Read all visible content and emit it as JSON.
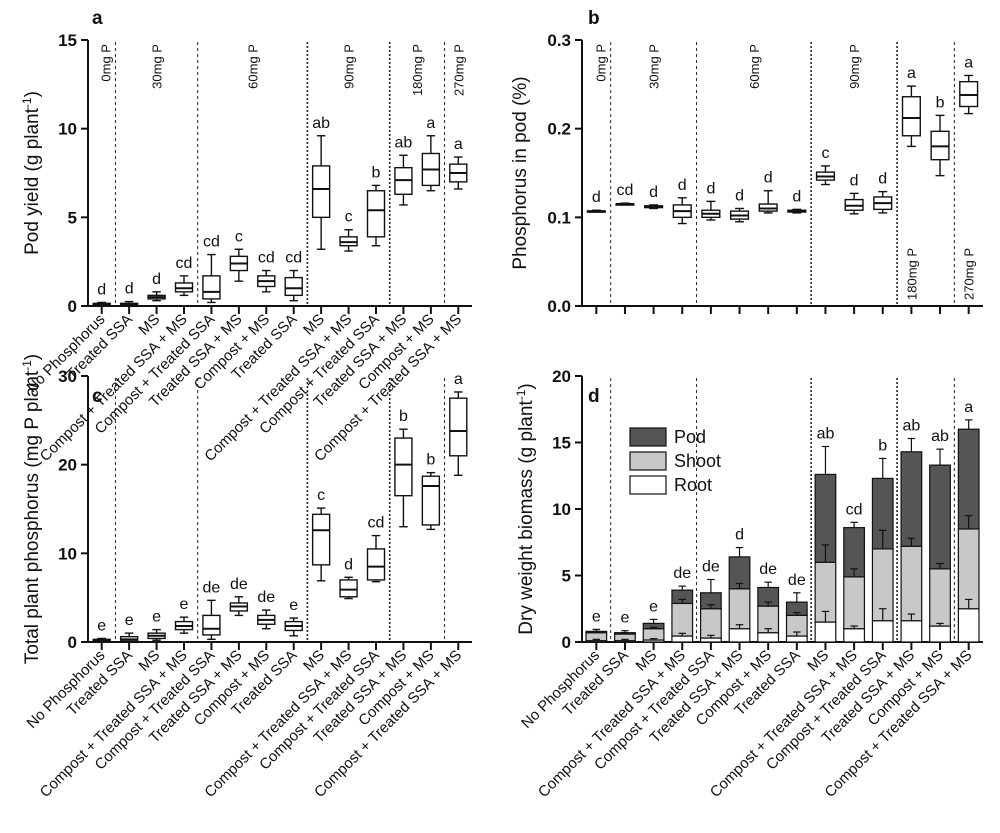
{
  "chart_data": [
    {
      "panel": "a",
      "type": "box",
      "title": "",
      "xlabel": "",
      "ylabel": "Pod yield (g plant-1)",
      "ylim": [
        0,
        15
      ],
      "yticks": [
        0,
        5,
        10,
        15
      ],
      "categories": [
        "No Phosphorus",
        "Treated SSA",
        "MS",
        "Compost + Treated SSA + MS",
        "Compost + Treated SSA",
        "Treated SSA + MS",
        "Compost + MS",
        "Treated SSA",
        "MS",
        "Compost + Treated SSA + MS",
        "Compost + Treated SSA",
        "Treated SSA + MS",
        "Compost + MS",
        "Compost + Treated SSA + MS"
      ],
      "groups": [
        "0mg P",
        "30mg P",
        "60mg P",
        "90mg P",
        "180mg P",
        "270mg P"
      ],
      "boxes": [
        {
          "min": 0.05,
          "q1": 0.08,
          "median": 0.1,
          "q3": 0.15,
          "max": 0.2,
          "letter": "d"
        },
        {
          "min": 0.0,
          "q1": 0.05,
          "median": 0.1,
          "q3": 0.15,
          "max": 0.25,
          "letter": "d"
        },
        {
          "min": 0.3,
          "q1": 0.4,
          "median": 0.5,
          "q3": 0.6,
          "max": 0.8,
          "letter": "d"
        },
        {
          "min": 0.6,
          "q1": 0.8,
          "median": 1.0,
          "q3": 1.3,
          "max": 1.7,
          "letter": "cd"
        },
        {
          "min": 0.2,
          "q1": 0.4,
          "median": 0.8,
          "q3": 1.7,
          "max": 2.9,
          "letter": "cd"
        },
        {
          "min": 1.4,
          "q1": 2.0,
          "median": 2.4,
          "q3": 2.8,
          "max": 3.2,
          "letter": "c"
        },
        {
          "min": 0.8,
          "q1": 1.1,
          "median": 1.4,
          "q3": 1.7,
          "max": 2.0,
          "letter": "cd"
        },
        {
          "min": 0.3,
          "q1": 0.6,
          "median": 1.0,
          "q3": 1.6,
          "max": 2.0,
          "letter": "cd"
        },
        {
          "min": 3.2,
          "q1": 5.0,
          "median": 6.6,
          "q3": 7.9,
          "max": 9.6,
          "letter": "ab"
        },
        {
          "min": 3.1,
          "q1": 3.4,
          "median": 3.6,
          "q3": 3.9,
          "max": 4.3,
          "letter": "c"
        },
        {
          "min": 3.4,
          "q1": 3.9,
          "median": 5.4,
          "q3": 6.5,
          "max": 6.8,
          "letter": "b"
        },
        {
          "min": 5.7,
          "q1": 6.3,
          "median": 7.1,
          "q3": 7.8,
          "max": 8.5,
          "letter": "ab"
        },
        {
          "min": 6.5,
          "q1": 6.8,
          "median": 7.7,
          "q3": 8.6,
          "max": 9.6,
          "letter": "a"
        },
        {
          "min": 6.6,
          "q1": 7.0,
          "median": 7.5,
          "q3": 8.0,
          "max": 8.4,
          "letter": "a"
        }
      ]
    },
    {
      "panel": "b",
      "type": "box",
      "title": "",
      "xlabel": "",
      "ylabel": "Phosphorus in pod (%)",
      "ylim": [
        0,
        0.3
      ],
      "yticks": [
        0.0,
        0.1,
        0.2,
        0.3
      ],
      "categories": [],
      "groups": [
        "0mg P",
        "30mg P",
        "60mg P",
        "90mg P",
        "180mg P",
        "270mg P"
      ],
      "group_labels_low": [
        "180mg P",
        "270mg P"
      ],
      "boxes": [
        {
          "min": 0.106,
          "q1": 0.106,
          "median": 0.107,
          "q3": 0.107,
          "max": 0.108,
          "letter": "d"
        },
        {
          "min": 0.114,
          "q1": 0.114,
          "median": 0.115,
          "q3": 0.115,
          "max": 0.116,
          "letter": "cd"
        },
        {
          "min": 0.11,
          "q1": 0.111,
          "median": 0.112,
          "q3": 0.113,
          "max": 0.114,
          "letter": "d"
        },
        {
          "min": 0.093,
          "q1": 0.1,
          "median": 0.107,
          "q3": 0.114,
          "max": 0.122,
          "letter": "d"
        },
        {
          "min": 0.097,
          "q1": 0.1,
          "median": 0.104,
          "q3": 0.108,
          "max": 0.118,
          "letter": "d"
        },
        {
          "min": 0.095,
          "q1": 0.098,
          "median": 0.102,
          "q3": 0.107,
          "max": 0.11,
          "letter": "d"
        },
        {
          "min": 0.105,
          "q1": 0.107,
          "median": 0.11,
          "q3": 0.115,
          "max": 0.13,
          "letter": "d"
        },
        {
          "min": 0.105,
          "q1": 0.106,
          "median": 0.107,
          "q3": 0.108,
          "max": 0.109,
          "letter": "d"
        },
        {
          "min": 0.137,
          "q1": 0.142,
          "median": 0.146,
          "q3": 0.151,
          "max": 0.158,
          "letter": "c"
        },
        {
          "min": 0.104,
          "q1": 0.108,
          "median": 0.113,
          "q3": 0.12,
          "max": 0.127,
          "letter": "d"
        },
        {
          "min": 0.105,
          "q1": 0.109,
          "median": 0.116,
          "q3": 0.123,
          "max": 0.129,
          "letter": "d"
        },
        {
          "min": 0.18,
          "q1": 0.192,
          "median": 0.212,
          "q3": 0.236,
          "max": 0.248,
          "letter": "a"
        },
        {
          "min": 0.147,
          "q1": 0.165,
          "median": 0.18,
          "q3": 0.197,
          "max": 0.215,
          "letter": "b"
        },
        {
          "min": 0.217,
          "q1": 0.225,
          "median": 0.238,
          "q3": 0.253,
          "max": 0.26,
          "letter": "a"
        }
      ]
    },
    {
      "panel": "c",
      "type": "box",
      "title": "",
      "xlabel": "",
      "ylabel": "Total plant phosphorus (mg P plant-1)",
      "ylim": [
        0,
        30
      ],
      "yticks": [
        0,
        10,
        20,
        30
      ],
      "categories": [
        "No Phosphorus",
        "Treated SSA",
        "MS",
        "Compost + Treated SSA + MS",
        "Compost + Treated SSA",
        "Treated SSA + MS",
        "Compost + MS",
        "Treated SSA",
        "MS",
        "Compost + Treated SSA + MS",
        "Compost + Treated SSA",
        "Treated SSA + MS",
        "Compost + MS",
        "Compost + Treated SSA + MS"
      ],
      "boxes": [
        {
          "min": 0.1,
          "q1": 0.15,
          "median": 0.2,
          "q3": 0.3,
          "max": 0.4,
          "letter": "e"
        },
        {
          "min": 0.0,
          "q1": 0.1,
          "median": 0.3,
          "q3": 0.6,
          "max": 1.0,
          "letter": "e"
        },
        {
          "min": 0.2,
          "q1": 0.4,
          "median": 0.7,
          "q3": 1.0,
          "max": 1.4,
          "letter": "e"
        },
        {
          "min": 1.0,
          "q1": 1.4,
          "median": 1.8,
          "q3": 2.3,
          "max": 2.8,
          "letter": "e"
        },
        {
          "min": 0.3,
          "q1": 0.8,
          "median": 1.5,
          "q3": 3.0,
          "max": 4.7,
          "letter": "de"
        },
        {
          "min": 3.0,
          "q1": 3.5,
          "median": 4.0,
          "q3": 4.4,
          "max": 5.1,
          "letter": "de"
        },
        {
          "min": 1.5,
          "q1": 2.0,
          "median": 2.5,
          "q3": 3.0,
          "max": 3.6,
          "letter": "de"
        },
        {
          "min": 0.7,
          "q1": 1.3,
          "median": 1.8,
          "q3": 2.3,
          "max": 2.7,
          "letter": "e"
        },
        {
          "min": 6.9,
          "q1": 8.7,
          "median": 12.6,
          "q3": 14.4,
          "max": 15.1,
          "letter": "c"
        },
        {
          "min": 4.9,
          "q1": 5.1,
          "median": 5.9,
          "q3": 7.0,
          "max": 7.3,
          "letter": "d"
        },
        {
          "min": 6.8,
          "q1": 7.0,
          "median": 8.5,
          "q3": 10.5,
          "max": 12.0,
          "letter": "cd"
        },
        {
          "min": 13.0,
          "q1": 16.5,
          "median": 20.0,
          "q3": 23.0,
          "max": 24.0,
          "letter": "b"
        },
        {
          "min": 12.7,
          "q1": 13.2,
          "median": 17.6,
          "q3": 18.7,
          "max": 19.1,
          "letter": "b"
        },
        {
          "min": 18.8,
          "q1": 21.0,
          "median": 23.8,
          "q3": 27.5,
          "max": 28.2,
          "letter": "a"
        }
      ]
    },
    {
      "panel": "d",
      "type": "stacked_bar",
      "title": "",
      "xlabel": "",
      "ylabel": "Dry weight biomass (g plant-1)",
      "ylim": [
        0,
        20
      ],
      "yticks": [
        0,
        5,
        10,
        15,
        20
      ],
      "categories": [
        "No Phosphorus",
        "Treated SSA",
        "MS",
        "Compost + Treated SSA + MS",
        "Compost + Treated SSA",
        "Treated SSA + MS",
        "Compost + MS",
        "Treated SSA",
        "MS",
        "Compost + Treated SSA + MS",
        "Compost + Treated SSA",
        "Treated SSA + MS",
        "Compost + MS",
        "Compost + Treated SSA + MS"
      ],
      "legend": {
        "position": "top-left",
        "entries": [
          "Pod",
          "Shoot",
          "Root"
        ]
      },
      "series": [
        {
          "name": "Root",
          "color": "#ffffff",
          "values": [
            0.1,
            0.1,
            0.15,
            0.45,
            0.3,
            1.0,
            0.7,
            0.45,
            1.5,
            1.0,
            1.6,
            1.6,
            1.2,
            2.5
          ],
          "errors": [
            0.1,
            0.1,
            0.1,
            0.2,
            0.2,
            0.3,
            0.3,
            0.3,
            0.8,
            0.2,
            0.9,
            0.5,
            0.2,
            0.7
          ]
        },
        {
          "name": "Shoot",
          "color": "#c8c8c8",
          "values": [
            0.6,
            0.5,
            0.85,
            2.45,
            2.2,
            3.0,
            2.0,
            1.55,
            4.5,
            3.9,
            5.4,
            5.6,
            4.3,
            6.0
          ],
          "errors": [
            0.1,
            0.1,
            0.1,
            0.3,
            0.3,
            0.4,
            0.3,
            0.2,
            1.3,
            0.6,
            1.4,
            0.6,
            0.4,
            1.0
          ]
        },
        {
          "name": "Pod",
          "color": "#555555",
          "values": [
            0.1,
            0.1,
            0.4,
            1.0,
            1.2,
            2.4,
            1.4,
            1.0,
            6.6,
            3.7,
            5.3,
            7.1,
            7.8,
            7.5
          ],
          "errors": [
            0.15,
            0.15,
            0.3,
            0.3,
            1.0,
            0.7,
            0.4,
            0.7,
            2.1,
            0.4,
            1.5,
            1.0,
            1.2,
            0.7
          ]
        }
      ],
      "totals": [
        0.8,
        0.7,
        1.4,
        3.9,
        3.7,
        6.4,
        4.1,
        3.0,
        12.6,
        8.6,
        12.3,
        14.3,
        13.3,
        16.0
      ],
      "letters": [
        "e",
        "e",
        "e",
        "de",
        "de",
        "d",
        "de",
        "de",
        "ab",
        "cd",
        "b",
        "ab",
        "ab",
        "a"
      ]
    }
  ]
}
